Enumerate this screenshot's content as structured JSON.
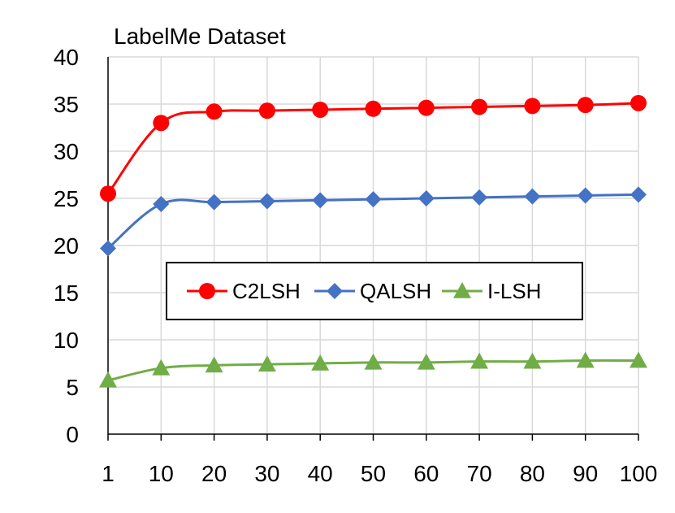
{
  "chart_data": {
    "type": "line",
    "title": "LabelMe Dataset",
    "xlabel": "",
    "ylabel": "",
    "categories": [
      "1",
      "10",
      "20",
      "30",
      "40",
      "50",
      "60",
      "70",
      "80",
      "90",
      "100"
    ],
    "ylim": [
      0,
      40
    ],
    "yticks": [
      "0",
      "5",
      "10",
      "15",
      "20",
      "25",
      "30",
      "35",
      "40"
    ],
    "grid": true,
    "legend_position": "center",
    "series": [
      {
        "name": "C2LSH",
        "color": "#ff0000",
        "line_color": "#ff0000",
        "marker": "circle",
        "values": [
          25.5,
          33.0,
          34.2,
          34.3,
          34.4,
          34.5,
          34.6,
          34.7,
          34.8,
          34.9,
          35.1
        ]
      },
      {
        "name": "QALSH",
        "color": "#4472c4",
        "line_color": "#4472c4",
        "marker": "diamond",
        "values": [
          19.7,
          24.4,
          24.6,
          24.7,
          24.8,
          24.9,
          25.0,
          25.1,
          25.2,
          25.3,
          25.4
        ]
      },
      {
        "name": "I-LSH",
        "color": "#70ad47",
        "line_color": "#70ad47",
        "marker": "triangle",
        "values": [
          5.7,
          7.0,
          7.3,
          7.4,
          7.5,
          7.6,
          7.6,
          7.7,
          7.7,
          7.8,
          7.8
        ]
      }
    ]
  }
}
